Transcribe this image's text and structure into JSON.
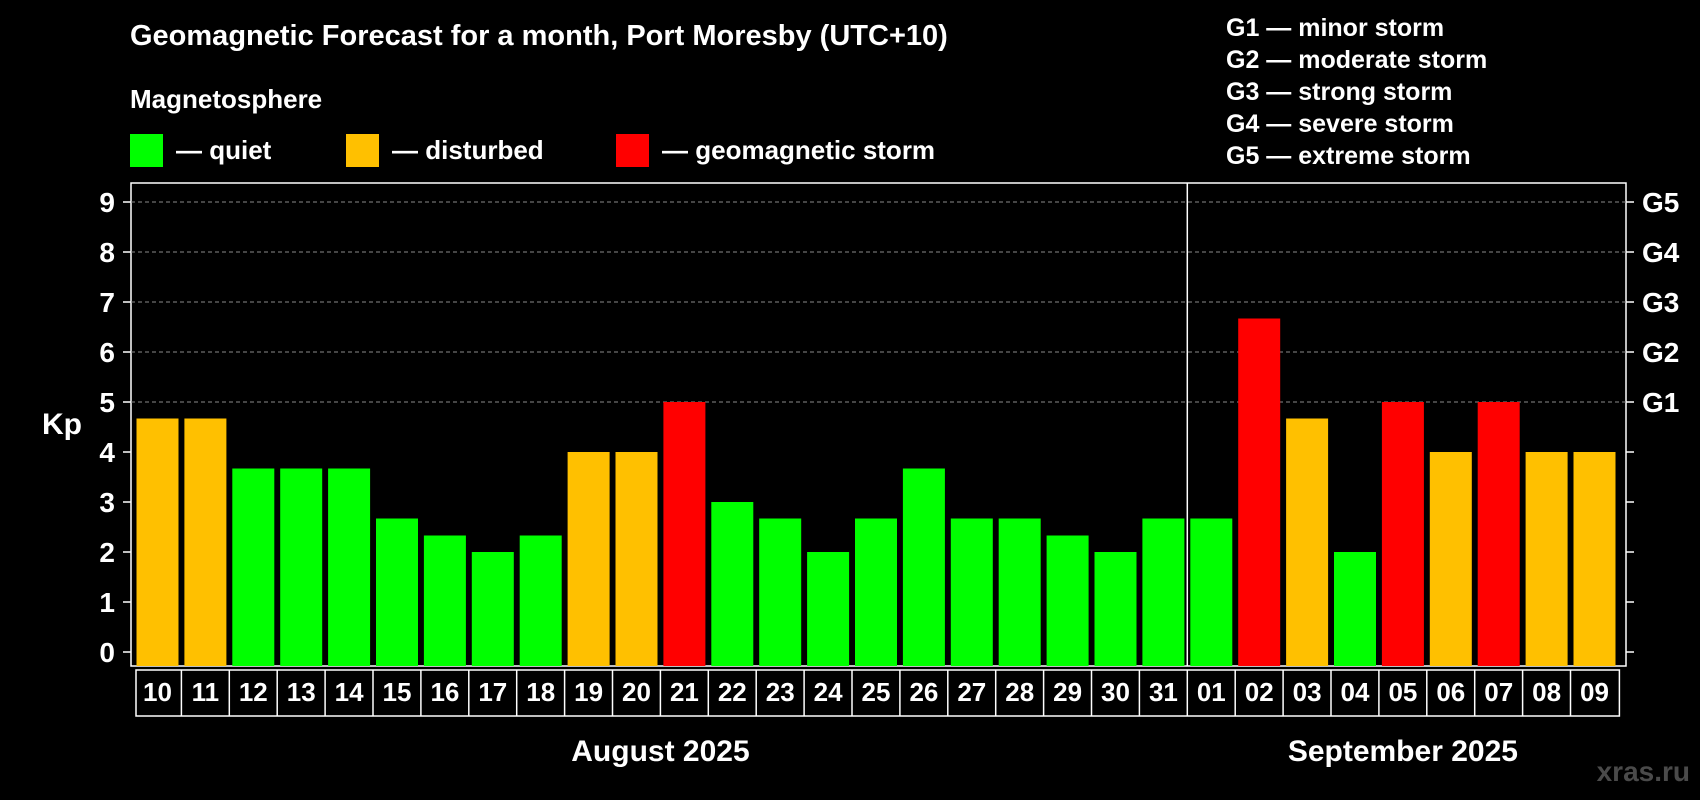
{
  "title": "Geomagnetic Forecast for a month, Port Moresby (UTC+10)",
  "legend": {
    "heading": "Magnetosphere",
    "items": [
      {
        "label": "— quiet",
        "color": "#00ff00"
      },
      {
        "label": "— disturbed",
        "color": "#ffc000"
      },
      {
        "label": "— geomagnetic storm",
        "color": "#ff0000"
      }
    ]
  },
  "g_scale": [
    "G1 — minor storm",
    "G2 — moderate storm",
    "G3 — strong storm",
    "G4 — severe storm",
    "G5 — extreme storm"
  ],
  "watermark": "xras.ru",
  "chart_data": {
    "type": "bar",
    "ylabel": "Kp",
    "ylim": [
      0,
      9
    ],
    "yticks": [
      "0",
      "1",
      "2",
      "3",
      "4",
      "5",
      "6",
      "7",
      "8",
      "9"
    ],
    "right_ticks": [
      {
        "kp": 5,
        "label": "G1"
      },
      {
        "kp": 6,
        "label": "G2"
      },
      {
        "kp": 7,
        "label": "G3"
      },
      {
        "kp": 8,
        "label": "G4"
      },
      {
        "kp": 9,
        "label": "G5"
      }
    ],
    "categories": [
      "10",
      "11",
      "12",
      "13",
      "14",
      "15",
      "16",
      "17",
      "18",
      "19",
      "20",
      "21",
      "22",
      "23",
      "24",
      "25",
      "26",
      "27",
      "28",
      "29",
      "30",
      "31",
      "01",
      "02",
      "03",
      "04",
      "05",
      "06",
      "07",
      "08",
      "09"
    ],
    "values": [
      4.67,
      4.67,
      3.67,
      3.67,
      3.67,
      2.67,
      2.33,
      2.0,
      2.33,
      4.0,
      4.0,
      5.0,
      3.0,
      2.67,
      2.0,
      2.67,
      3.67,
      2.67,
      2.67,
      2.33,
      2.0,
      2.67,
      2.67,
      6.67,
      4.67,
      2.0,
      5.0,
      4.0,
      5.0,
      4.0,
      4.0
    ],
    "levels": [
      "disturbed",
      "disturbed",
      "quiet",
      "quiet",
      "quiet",
      "quiet",
      "quiet",
      "quiet",
      "quiet",
      "disturbed",
      "disturbed",
      "storm",
      "quiet",
      "quiet",
      "quiet",
      "quiet",
      "quiet",
      "quiet",
      "quiet",
      "quiet",
      "quiet",
      "quiet",
      "quiet",
      "storm",
      "disturbed",
      "quiet",
      "storm",
      "disturbed",
      "storm",
      "disturbed",
      "disturbed"
    ],
    "colors": {
      "quiet": "#00ff00",
      "disturbed": "#ffc000",
      "storm": "#ff0000"
    },
    "months": [
      {
        "label": "August 2025",
        "start": 0,
        "end": 21
      },
      {
        "label": "September 2025",
        "start": 22,
        "end": 30
      }
    ],
    "grid": true
  }
}
